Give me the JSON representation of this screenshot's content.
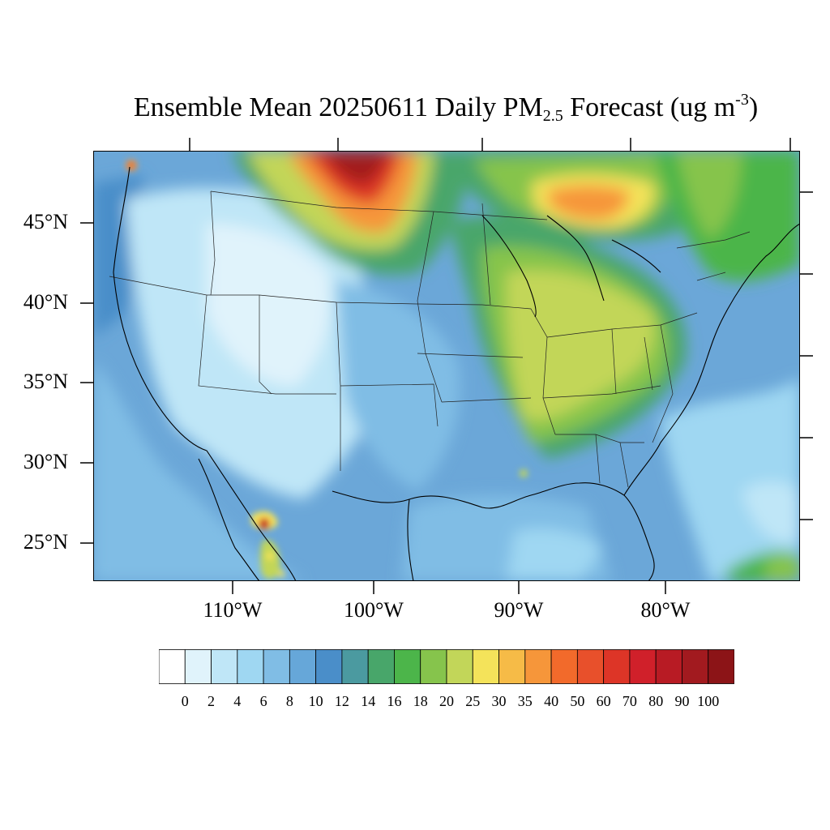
{
  "title": {
    "prefix": "Ensemble Mean 20250611 Daily PM",
    "subscript": "2.5",
    "middle": " Forecast (ug m",
    "superscript": "-3",
    "suffix": ")"
  },
  "lat_labels": [
    "45°N",
    "40°N",
    "35°N",
    "30°N",
    "25°N"
  ],
  "lon_labels": [
    "110°W",
    "100°W",
    "90°W",
    "80°W"
  ],
  "colorbar": {
    "labels": [
      "0",
      "2",
      "4",
      "6",
      "8",
      "10",
      "12",
      "14",
      "16",
      "18",
      "20",
      "25",
      "30",
      "35",
      "40",
      "50",
      "60",
      "70",
      "80",
      "90",
      "100"
    ],
    "colors": [
      "#ffffff",
      "#e0f3fb",
      "#bfe6f7",
      "#9fd7f2",
      "#80bde5",
      "#66a7d9",
      "#4a8ec9",
      "#4b9aa0",
      "#48a66a",
      "#4cb54a",
      "#86c44c",
      "#c2d659",
      "#f4e35a",
      "#f6bb47",
      "#f6963a",
      "#f26a2b",
      "#e8502b",
      "#dd3527",
      "#d0202a",
      "#b81b24",
      "#a21a1f",
      "#8c1417"
    ]
  }
}
